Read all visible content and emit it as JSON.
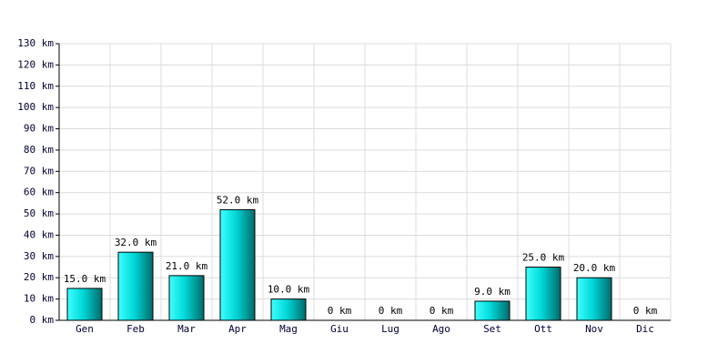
{
  "chart_data": {
    "type": "bar",
    "categories": [
      "Gen",
      "Feb",
      "Mar",
      "Apr",
      "Mag",
      "Giu",
      "Lug",
      "Ago",
      "Set",
      "Ott",
      "Nov",
      "Dic"
    ],
    "values": [
      15,
      32,
      21,
      52,
      10,
      0,
      0,
      0,
      9,
      25,
      20,
      0
    ],
    "value_labels": [
      "15.0 km",
      "32.0 km",
      "21.0 km",
      "52.0 km",
      "10.0 km",
      "0 km",
      "0 km",
      "0 km",
      "9.0 km",
      "25.0 km",
      "20.0 km",
      "0 km"
    ],
    "color": "#00d8d8",
    "ylim": [
      0,
      130
    ],
    "yticks": [
      {
        "value": 0,
        "label": "0 km"
      },
      {
        "value": 10,
        "label": "10 km"
      },
      {
        "value": 20,
        "label": "20 km"
      },
      {
        "value": 30,
        "label": "30 km"
      },
      {
        "value": 40,
        "label": "40 km"
      },
      {
        "value": 50,
        "label": "50 km"
      },
      {
        "value": 60,
        "label": "60 km"
      },
      {
        "value": 70,
        "label": "70 km"
      },
      {
        "value": 80,
        "label": "80 km"
      },
      {
        "value": 90,
        "label": "90 km"
      },
      {
        "value": 100,
        "label": "100 km"
      },
      {
        "value": 110,
        "label": "110 km"
      },
      {
        "value": 120,
        "label": "120 km"
      },
      {
        "value": 130,
        "label": "130 km"
      }
    ],
    "grid": true
  }
}
